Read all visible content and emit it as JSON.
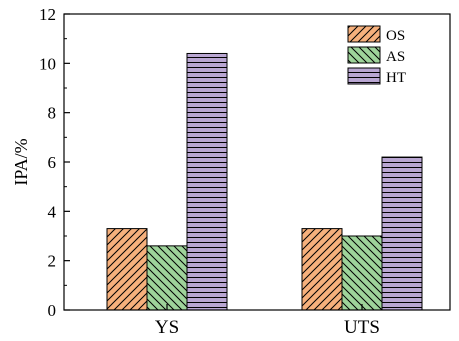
{
  "chart_data": {
    "type": "bar",
    "categories": [
      "YS",
      "UTS"
    ],
    "series": [
      {
        "name": "OS",
        "values": [
          3.3,
          3.3
        ],
        "color": "#f6b07c",
        "pattern": "diagonal-forward"
      },
      {
        "name": "AS",
        "values": [
          2.6,
          3.0
        ],
        "color": "#9ed39a",
        "pattern": "diagonal-backward"
      },
      {
        "name": "HT",
        "values": [
          10.4,
          6.2
        ],
        "color": "#b9a6d2",
        "pattern": "horizontal"
      }
    ],
    "ylabel": "IPA/%",
    "xlabel": "",
    "ylim": [
      0,
      12
    ],
    "yticks": [
      "0",
      "2",
      "4",
      "6",
      "8",
      "10",
      "12"
    ],
    "legend_position": "top-right",
    "grid": false
  }
}
